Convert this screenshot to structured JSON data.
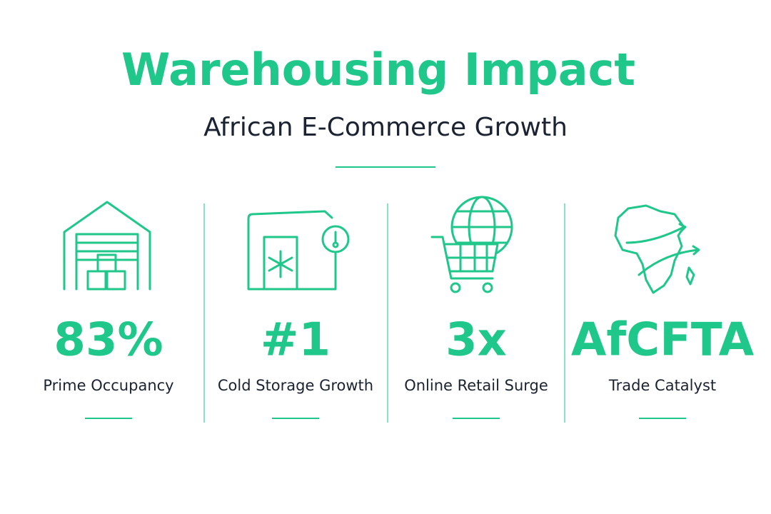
{
  "header": {
    "title": "Warehousing Impact",
    "subtitle": "African E-Commerce Growth"
  },
  "stats": [
    {
      "value": "83%",
      "label": "Prime Occupancy"
    },
    {
      "value": "#1",
      "label": "Cold Storage Growth"
    },
    {
      "value": "3x",
      "label": "Online Retail Surge"
    },
    {
      "value": "AfCFTA",
      "label": "Trade Catalyst"
    }
  ]
}
